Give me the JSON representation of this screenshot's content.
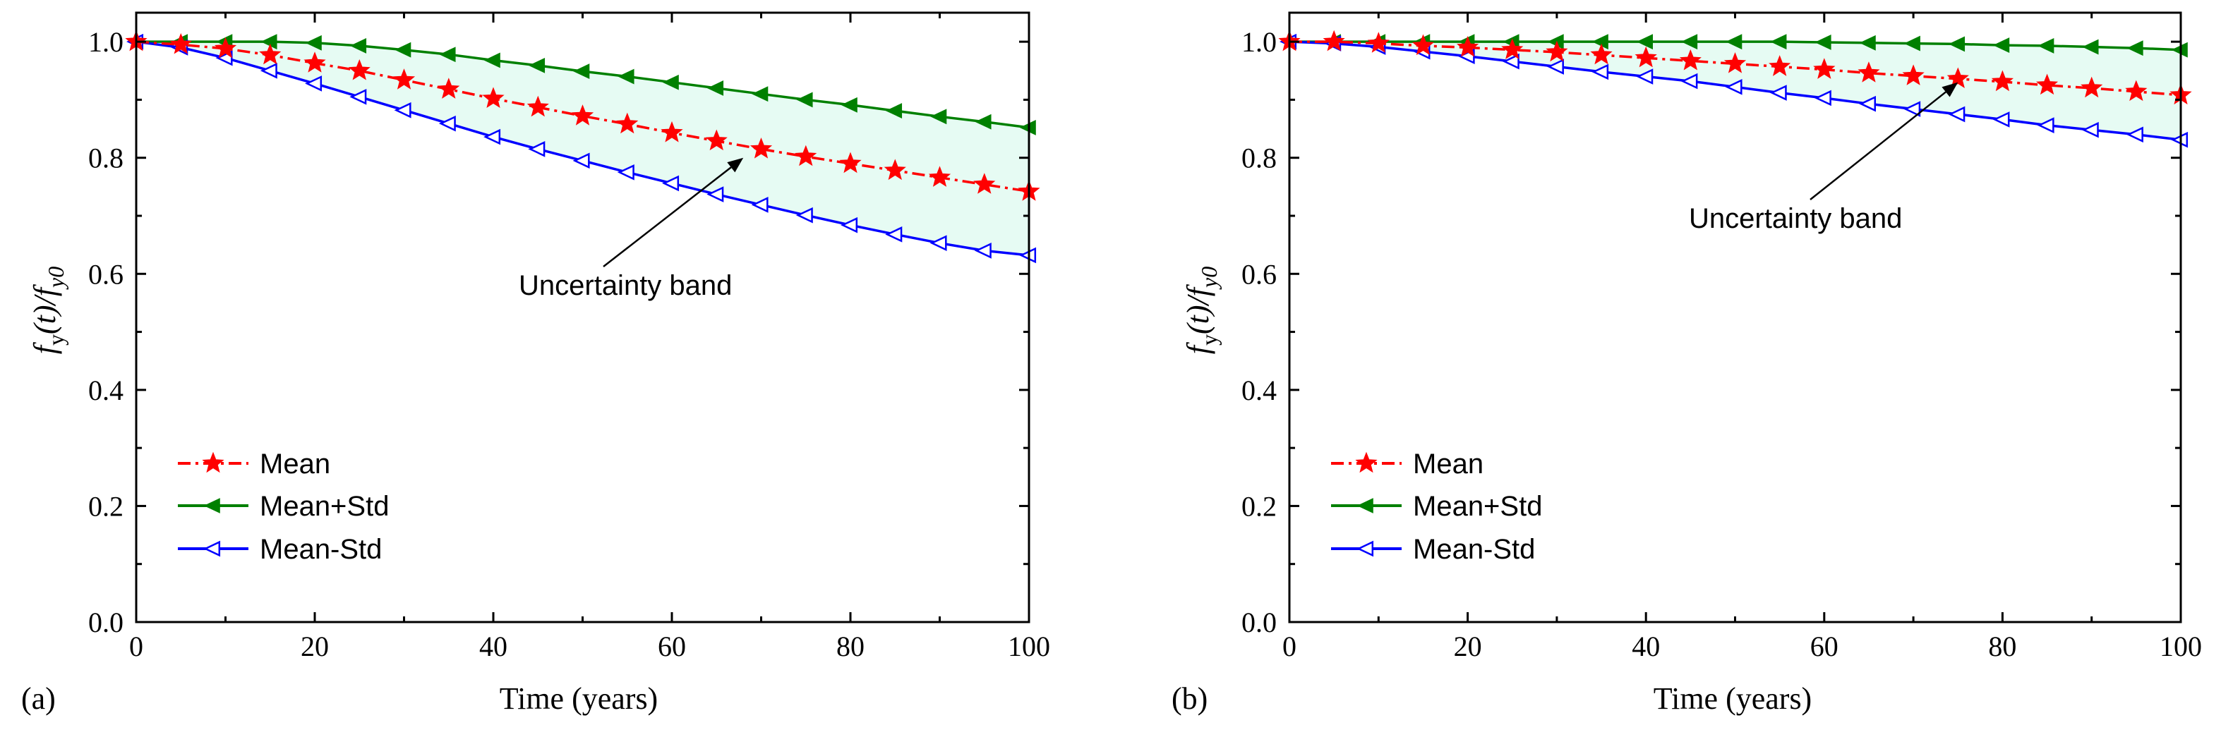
{
  "chart_data": [
    {
      "panel_label": "(a)",
      "type": "line",
      "xlabel": "Time (years)",
      "ylabel": "f_y(t)/f_y0",
      "xlim": [
        0,
        100
      ],
      "ylim": [
        0.0,
        1.05
      ],
      "xticks": [
        0,
        20,
        40,
        60,
        80,
        100
      ],
      "yticks": [
        0.0,
        0.2,
        0.4,
        0.6,
        0.8,
        1.0
      ],
      "tick_labels_x": [
        "0",
        "20",
        "40",
        "60",
        "80",
        "100"
      ],
      "tick_labels_y": [
        "0.0",
        "0.2",
        "0.4",
        "0.6",
        "0.8",
        "1.0"
      ],
      "x": [
        0,
        5,
        10,
        15,
        20,
        25,
        30,
        35,
        40,
        45,
        50,
        55,
        60,
        65,
        70,
        75,
        80,
        85,
        90,
        95,
        100
      ],
      "series": [
        {
          "name": "Mean",
          "color": "#ff0000",
          "linestyle": "dash-dot",
          "marker": "star",
          "values": [
            1.0,
            0.995,
            0.988,
            0.977,
            0.963,
            0.95,
            0.934,
            0.918,
            0.902,
            0.887,
            0.872,
            0.858,
            0.843,
            0.829,
            0.815,
            0.802,
            0.79,
            0.778,
            0.766,
            0.754,
            0.742
          ]
        },
        {
          "name": "Mean+Std",
          "color": "#008000",
          "linestyle": "solid",
          "marker": "triangle-left-filled",
          "values": [
            1.0,
            1.0,
            1.0,
            1.0,
            0.998,
            0.993,
            0.986,
            0.978,
            0.968,
            0.959,
            0.949,
            0.94,
            0.93,
            0.92,
            0.91,
            0.9,
            0.891,
            0.881,
            0.871,
            0.862,
            0.852
          ]
        },
        {
          "name": "Mean-Std",
          "color": "#0000ff",
          "linestyle": "solid",
          "marker": "triangle-left-open",
          "values": [
            1.0,
            0.99,
            0.972,
            0.95,
            0.928,
            0.905,
            0.882,
            0.859,
            0.836,
            0.815,
            0.795,
            0.775,
            0.756,
            0.737,
            0.719,
            0.701,
            0.684,
            0.668,
            0.653,
            0.64,
            0.632
          ]
        }
      ],
      "band_color": "#e6fbf3",
      "annotation": {
        "text": "Uncertainty band",
        "arrow_target": [
          68,
          0.8
        ],
        "text_anchor": [
          63,
          0.59
        ]
      },
      "legend": {
        "position": "bottom-left",
        "entries": [
          "Mean",
          "Mean+Std",
          "Mean-Std"
        ]
      }
    },
    {
      "panel_label": "(b)",
      "type": "line",
      "xlabel": "Time (years)",
      "ylabel": "f_y(t)/f_y0",
      "xlim": [
        0,
        100
      ],
      "ylim": [
        0.0,
        1.05
      ],
      "xticks": [
        0,
        20,
        40,
        60,
        80,
        100
      ],
      "yticks": [
        0.0,
        0.2,
        0.4,
        0.6,
        0.8,
        1.0
      ],
      "tick_labels_x": [
        "0",
        "20",
        "40",
        "60",
        "80",
        "100"
      ],
      "tick_labels_y": [
        "0.0",
        "0.2",
        "0.4",
        "0.6",
        "0.8",
        "1.0"
      ],
      "x": [
        0,
        5,
        10,
        15,
        20,
        25,
        30,
        35,
        40,
        45,
        50,
        55,
        60,
        65,
        70,
        75,
        80,
        85,
        90,
        95,
        100
      ],
      "series": [
        {
          "name": "Mean",
          "color": "#ff0000",
          "linestyle": "dash-dot",
          "marker": "star",
          "values": [
            1.0,
            1.0,
            0.997,
            0.993,
            0.99,
            0.986,
            0.982,
            0.977,
            0.972,
            0.967,
            0.962,
            0.957,
            0.952,
            0.946,
            0.941,
            0.936,
            0.931,
            0.925,
            0.92,
            0.914,
            0.908
          ]
        },
        {
          "name": "Mean+Std",
          "color": "#008000",
          "linestyle": "solid",
          "marker": "triangle-left-filled",
          "values": [
            1.0,
            1.0,
            1.0,
            1.0,
            1.0,
            1.0,
            1.0,
            1.0,
            1.0,
            1.0,
            1.0,
            1.0,
            0.999,
            0.998,
            0.997,
            0.996,
            0.994,
            0.993,
            0.991,
            0.989,
            0.986
          ]
        },
        {
          "name": "Mean-Std",
          "color": "#0000ff",
          "linestyle": "solid",
          "marker": "triangle-left-open",
          "values": [
            1.0,
            0.997,
            0.991,
            0.983,
            0.975,
            0.966,
            0.957,
            0.948,
            0.94,
            0.932,
            0.922,
            0.912,
            0.903,
            0.893,
            0.884,
            0.875,
            0.866,
            0.856,
            0.848,
            0.84,
            0.831
          ]
        }
      ],
      "band_color": "#e6fbf3",
      "annotation": {
        "text": "Uncertainty band",
        "arrow_target": [
          75,
          0.93
        ],
        "text_anchor": [
          70,
          0.69
        ]
      },
      "legend": {
        "position": "bottom-left",
        "entries": [
          "Mean",
          "Mean+Std",
          "Mean-Std"
        ]
      }
    }
  ]
}
